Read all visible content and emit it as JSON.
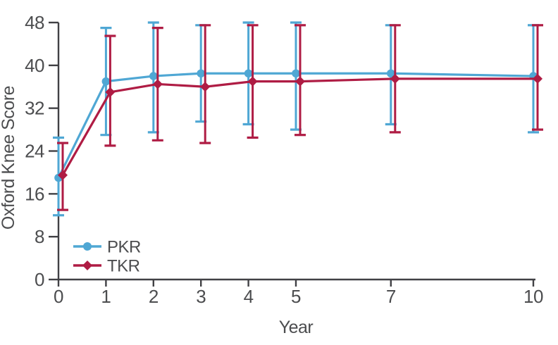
{
  "chart_data": {
    "type": "line",
    "title": "",
    "xlabel": "Year",
    "ylabel": "Oxford Knee Score",
    "xlim": [
      0,
      10
    ],
    "ylim": [
      0,
      48
    ],
    "x_ticks": [
      0,
      1,
      2,
      3,
      4,
      5,
      7,
      10
    ],
    "y_ticks": [
      0,
      8,
      16,
      24,
      32,
      40,
      48
    ],
    "grid": false,
    "legend_position": "inside-lower-left",
    "error_bars": "95% CI",
    "axis_color": "#414145",
    "text_color": "#4C4D4F",
    "series": [
      {
        "name": "PKR",
        "color": "#4FA7D4",
        "marker": "circle",
        "x": [
          0,
          1,
          2,
          3,
          4,
          5,
          7,
          10
        ],
        "values": [
          19,
          37,
          38,
          38.5,
          38.5,
          38.5,
          38.5,
          38
        ],
        "err_low": [
          12,
          27,
          27.5,
          29.5,
          29,
          28,
          29,
          27.5
        ],
        "err_high": [
          26.5,
          47,
          48,
          47.5,
          48,
          48,
          47.5,
          47.5
        ]
      },
      {
        "name": "TKR",
        "color": "#AF1C44",
        "marker": "diamond",
        "x": [
          0,
          1,
          2,
          3,
          4,
          5,
          7,
          10
        ],
        "values": [
          19.5,
          35,
          36.5,
          36,
          37,
          37,
          37.5,
          37.5
        ],
        "err_low": [
          13,
          25,
          26,
          25.5,
          26.5,
          27,
          27.5,
          28
        ],
        "err_high": [
          25.5,
          45.5,
          47,
          47.5,
          47.5,
          47.5,
          47.5,
          47.5
        ]
      }
    ]
  }
}
